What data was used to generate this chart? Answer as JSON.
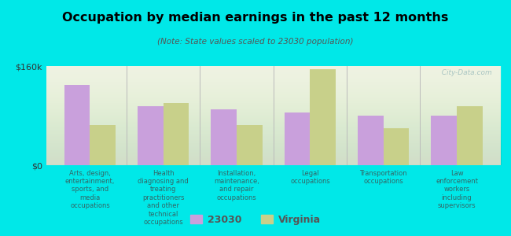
{
  "title": "Occupation by median earnings in the past 12 months",
  "subtitle": "(Note: State values scaled to 23030 population)",
  "background_color": "#00e8e8",
  "plot_bg_color": "#eef2e0",
  "categories": [
    "Arts, design,\nentertainment,\nsports, and\nmedia\noccupations",
    "Health\ndiagnosing and\ntreating\npractitioners\nand other\ntechnical\noccupations",
    "Installation,\nmaintenance,\nand repair\noccupations",
    "Legal\noccupations",
    "Transportation\noccupations",
    "Law\nenforcement\nworkers\nincluding\nsupervisors"
  ],
  "values_23030": [
    130000,
    95000,
    90000,
    85000,
    80000,
    80000
  ],
  "values_virginia": [
    65000,
    100000,
    65000,
    155000,
    60000,
    95000
  ],
  "color_23030": "#c9a0dc",
  "color_virginia": "#c8d08a",
  "ylim": [
    0,
    160000
  ],
  "yticks": [
    0,
    160000
  ],
  "ytick_labels": [
    "$0",
    "$160k"
  ],
  "bar_width": 0.35,
  "legend_labels": [
    "23030",
    "Virginia"
  ],
  "watermark": "  City-Data.com"
}
